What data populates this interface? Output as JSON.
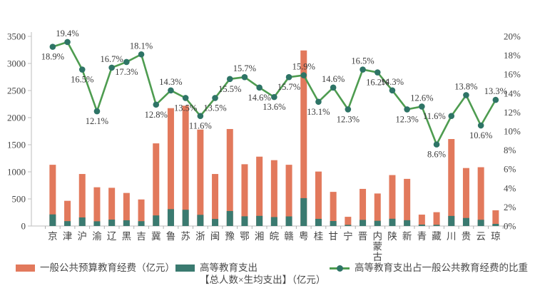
{
  "chart_data": {
    "type": "bar+line combo",
    "categories": [
      "京",
      "津",
      "沪",
      "渝",
      "辽",
      "黑",
      "吉",
      "冀",
      "鲁",
      "苏",
      "浙",
      "闽",
      "豫",
      "鄂",
      "湘",
      "皖",
      "赣",
      "粤",
      "桂",
      "甘",
      "宁",
      "晋",
      "内蒙古",
      "陕",
      "新",
      "青",
      "藏",
      "川",
      "贵",
      "云",
      "琼"
    ],
    "series": [
      {
        "name": "一般公共预算教育经费（亿元）",
        "type": "bar",
        "values": [
          1130,
          465,
          960,
          715,
          705,
          610,
          490,
          1525,
          2175,
          2220,
          1780,
          960,
          1790,
          1140,
          1280,
          1215,
          1130,
          3240,
          1005,
          630,
          170,
          685,
          600,
          940,
          870,
          210,
          255,
          1605,
          1070,
          1085,
          290
        ]
      },
      {
        "name": "高等教育支出【总人数×生均支出】（亿元）",
        "type": "bar",
        "values": [
          214,
          90,
          158,
          87,
          118,
          106,
          89,
          195,
          311,
          300,
          206,
          130,
          277,
          179,
          187,
          165,
          177,
          514,
          132,
          92,
          21,
          113,
          97,
          134,
          107,
          26,
          22,
          186,
          148,
          115,
          39
        ]
      },
      {
        "name": "高等教育支出占一般公共教育经费的比重",
        "type": "line",
        "unit": "%",
        "values": [
          18.9,
          19.4,
          16.5,
          12.1,
          16.7,
          17.3,
          18.1,
          12.8,
          14.3,
          13.5,
          11.6,
          13.5,
          15.5,
          15.7,
          14.6,
          13.6,
          15.7,
          15.9,
          13.1,
          14.6,
          12.3,
          16.5,
          16.2,
          14.3,
          12.3,
          12.6,
          8.6,
          11.6,
          13.8,
          10.6,
          13.3
        ],
        "labels": [
          "18.9%",
          "19.4%",
          "16.5%",
          "12.1%",
          "16.7%",
          "17.3%",
          "18.1%",
          "12.8%",
          "14.3%",
          "13.5%",
          "11.6%",
          "13.5%",
          "15.5%",
          "15.7%",
          "14.6%",
          "13.6%",
          "15.7%",
          "15.9%",
          "13.1%",
          "14.6%",
          "12.3%",
          "16.5%",
          "16.2%",
          "14.3%",
          "12.3%",
          "12.6%",
          "8.6%",
          "11.6%",
          "13.8%",
          "10.6%",
          "13.3%"
        ],
        "label_sides": [
          "below",
          "above",
          "below",
          "below",
          "above",
          "below",
          "above",
          "below",
          "above",
          "below",
          "below",
          "below",
          "below",
          "above",
          "below",
          "below",
          "below",
          "above",
          "below",
          "above",
          "below",
          "above",
          "below",
          "above",
          "below",
          "above",
          "below",
          "left",
          "above",
          "below",
          "above"
        ]
      }
    ],
    "left_axis": {
      "min": 0,
      "max": 3500,
      "step": 500,
      "ticks": [
        "0",
        "500",
        "1000",
        "1500",
        "2000",
        "2500",
        "3000",
        "3500"
      ]
    },
    "right_axis": {
      "min": 0,
      "max": 20,
      "step": 2,
      "ticks": [
        "0%",
        "2%",
        "4%",
        "6%",
        "8%",
        "10%",
        "12%",
        "14%",
        "16%",
        "18%",
        "20%"
      ]
    },
    "grid": false,
    "legend_position": "bottom"
  },
  "legend": {
    "item1": "一般公共预算教育经费（亿元）",
    "item2_line1": "高等教育支出",
    "item2_line2": "【总人数×生均支出】（亿元）",
    "item3": "高等教育支出占一般公共教育经费的比重"
  },
  "colors": {
    "budget_bar": "#E2795C",
    "higher_ed_bar": "#3A7A70",
    "ratio_line": "#4E9C50",
    "ratio_marker": "#2E7466",
    "axis_line": "#c9c9c9",
    "tick_mark": "#b0b0b0",
    "axis_text": "#444444",
    "data_label_text": "#3b3b3b",
    "background": "#ffffff"
  }
}
